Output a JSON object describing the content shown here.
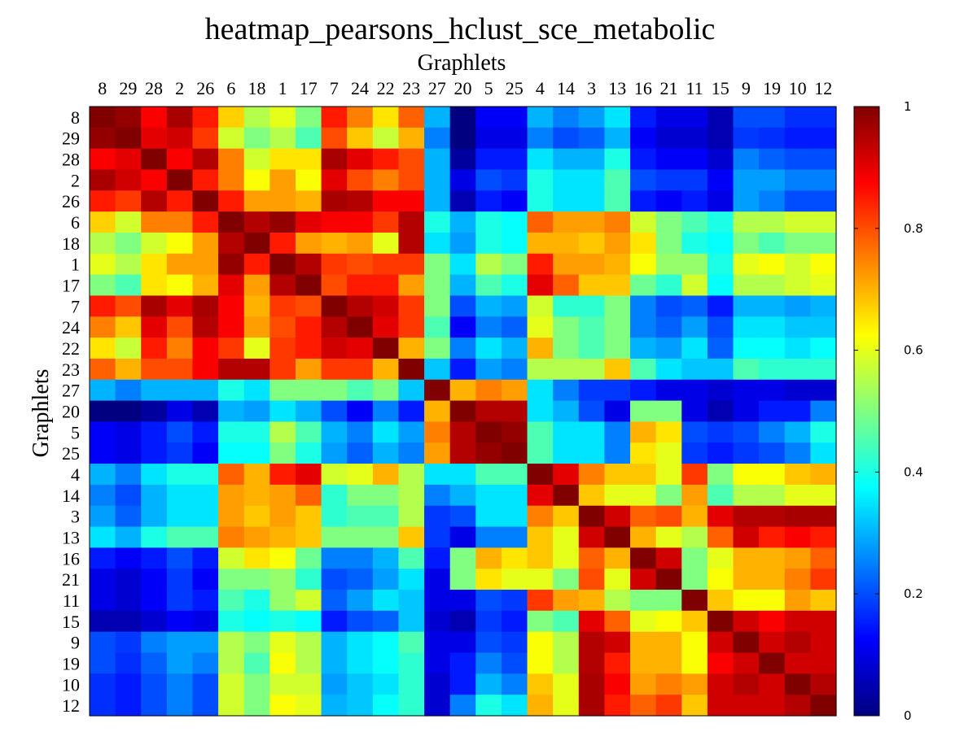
{
  "chart_data": {
    "type": "heatmap",
    "title": "heatmap_pearsons_hclust_sce_metabolic",
    "xlabel": "Graphlets",
    "ylabel": "Graphlets",
    "labels": [
      "8",
      "29",
      "28",
      "2",
      "26",
      "6",
      "18",
      "1",
      "17",
      "7",
      "24",
      "22",
      "23",
      "27",
      "20",
      "5",
      "25",
      "4",
      "14",
      "3",
      "13",
      "16",
      "21",
      "11",
      "15",
      "9",
      "19",
      "10",
      "12"
    ],
    "colorscale": "jet",
    "clim": [
      0,
      1
    ],
    "colorbar_ticks": [
      "0",
      "0.2",
      "0.4",
      "0.6",
      "0.8",
      "1"
    ],
    "values": [
      [
        1.0,
        0.98,
        0.88,
        0.96,
        0.85,
        0.67,
        0.55,
        0.6,
        0.5,
        0.85,
        0.75,
        0.65,
        0.78,
        0.3,
        0.0,
        0.12,
        0.12,
        0.3,
        0.25,
        0.28,
        0.35,
        0.15,
        0.1,
        0.1,
        0.05,
        0.2,
        0.2,
        0.17,
        0.17
      ],
      [
        0.98,
        1.0,
        0.9,
        0.92,
        0.82,
        0.58,
        0.5,
        0.55,
        0.45,
        0.8,
        0.68,
        0.57,
        0.7,
        0.25,
        0.0,
        0.1,
        0.1,
        0.25,
        0.2,
        0.22,
        0.3,
        0.12,
        0.08,
        0.08,
        0.05,
        0.18,
        0.17,
        0.15,
        0.15
      ],
      [
        0.88,
        0.9,
        1.0,
        0.88,
        0.95,
        0.75,
        0.58,
        0.65,
        0.65,
        0.96,
        0.9,
        0.85,
        0.8,
        0.3,
        0.03,
        0.15,
        0.15,
        0.35,
        0.3,
        0.3,
        0.4,
        0.15,
        0.12,
        0.12,
        0.08,
        0.25,
        0.22,
        0.2,
        0.2
      ],
      [
        0.96,
        0.92,
        0.88,
        1.0,
        0.85,
        0.75,
        0.62,
        0.72,
        0.62,
        0.9,
        0.8,
        0.75,
        0.8,
        0.3,
        0.1,
        0.2,
        0.18,
        0.4,
        0.35,
        0.35,
        0.45,
        0.2,
        0.18,
        0.18,
        0.12,
        0.28,
        0.28,
        0.25,
        0.25
      ],
      [
        0.85,
        0.82,
        0.95,
        0.85,
        1.0,
        0.85,
        0.72,
        0.72,
        0.7,
        0.96,
        0.95,
        0.88,
        0.88,
        0.3,
        0.05,
        0.15,
        0.12,
        0.4,
        0.35,
        0.35,
        0.45,
        0.15,
        0.12,
        0.15,
        0.1,
        0.28,
        0.25,
        0.2,
        0.2
      ],
      [
        0.67,
        0.58,
        0.75,
        0.75,
        0.85,
        1.0,
        0.95,
        0.98,
        0.9,
        0.88,
        0.88,
        0.82,
        0.95,
        0.4,
        0.3,
        0.4,
        0.38,
        0.78,
        0.72,
        0.72,
        0.75,
        0.58,
        0.5,
        0.45,
        0.4,
        0.55,
        0.55,
        0.58,
        0.58
      ],
      [
        0.55,
        0.5,
        0.58,
        0.62,
        0.72,
        0.95,
        1.0,
        0.85,
        0.72,
        0.7,
        0.72,
        0.6,
        0.95,
        0.35,
        0.28,
        0.4,
        0.38,
        0.7,
        0.7,
        0.68,
        0.72,
        0.65,
        0.5,
        0.4,
        0.38,
        0.5,
        0.45,
        0.5,
        0.5
      ],
      [
        0.6,
        0.55,
        0.65,
        0.72,
        0.72,
        0.98,
        0.85,
        1.0,
        0.95,
        0.82,
        0.8,
        0.82,
        0.82,
        0.5,
        0.35,
        0.55,
        0.5,
        0.85,
        0.72,
        0.72,
        0.7,
        0.62,
        0.52,
        0.52,
        0.4,
        0.6,
        0.62,
        0.58,
        0.62
      ],
      [
        0.5,
        0.45,
        0.65,
        0.62,
        0.7,
        0.9,
        0.72,
        0.95,
        1.0,
        0.8,
        0.85,
        0.85,
        0.72,
        0.5,
        0.3,
        0.45,
        0.4,
        0.9,
        0.78,
        0.68,
        0.68,
        0.48,
        0.42,
        0.58,
        0.38,
        0.55,
        0.55,
        0.58,
        0.6
      ],
      [
        0.85,
        0.8,
        0.96,
        0.9,
        0.96,
        0.88,
        0.7,
        0.82,
        0.8,
        1.0,
        0.95,
        0.92,
        0.82,
        0.5,
        0.2,
        0.3,
        0.28,
        0.58,
        0.42,
        0.42,
        0.5,
        0.25,
        0.2,
        0.22,
        0.15,
        0.3,
        0.3,
        0.28,
        0.3
      ],
      [
        0.75,
        0.68,
        0.9,
        0.8,
        0.95,
        0.88,
        0.72,
        0.8,
        0.85,
        0.95,
        1.0,
        0.9,
        0.82,
        0.45,
        0.12,
        0.25,
        0.22,
        0.6,
        0.5,
        0.45,
        0.5,
        0.25,
        0.22,
        0.28,
        0.2,
        0.35,
        0.35,
        0.32,
        0.32
      ],
      [
        0.65,
        0.57,
        0.85,
        0.75,
        0.88,
        0.82,
        0.6,
        0.82,
        0.85,
        0.92,
        0.9,
        1.0,
        0.7,
        0.5,
        0.25,
        0.35,
        0.3,
        0.7,
        0.5,
        0.45,
        0.5,
        0.3,
        0.28,
        0.35,
        0.22,
        0.38,
        0.38,
        0.35,
        0.38
      ],
      [
        0.78,
        0.7,
        0.8,
        0.8,
        0.88,
        0.95,
        0.95,
        0.82,
        0.72,
        0.82,
        0.82,
        0.7,
        1.0,
        0.32,
        0.15,
        0.28,
        0.25,
        0.55,
        0.55,
        0.55,
        0.68,
        0.45,
        0.35,
        0.32,
        0.32,
        0.45,
        0.42,
        0.42,
        0.42
      ],
      [
        0.3,
        0.25,
        0.3,
        0.3,
        0.3,
        0.4,
        0.35,
        0.5,
        0.5,
        0.5,
        0.45,
        0.5,
        0.32,
        1.0,
        0.7,
        0.75,
        0.72,
        0.35,
        0.25,
        0.18,
        0.18,
        0.15,
        0.1,
        0.1,
        0.08,
        0.1,
        0.1,
        0.08,
        0.08
      ],
      [
        0.0,
        0.0,
        0.03,
        0.1,
        0.05,
        0.3,
        0.28,
        0.35,
        0.3,
        0.2,
        0.12,
        0.25,
        0.15,
        0.7,
        1.0,
        0.95,
        0.95,
        0.35,
        0.3,
        0.2,
        0.1,
        0.5,
        0.5,
        0.1,
        0.05,
        0.1,
        0.15,
        0.15,
        0.25
      ],
      [
        0.12,
        0.1,
        0.15,
        0.2,
        0.15,
        0.4,
        0.4,
        0.55,
        0.45,
        0.3,
        0.25,
        0.35,
        0.28,
        0.75,
        0.95,
        1.0,
        0.98,
        0.45,
        0.35,
        0.35,
        0.25,
        0.7,
        0.65,
        0.2,
        0.18,
        0.2,
        0.25,
        0.3,
        0.4
      ],
      [
        0.12,
        0.1,
        0.15,
        0.18,
        0.12,
        0.38,
        0.38,
        0.5,
        0.4,
        0.28,
        0.22,
        0.3,
        0.25,
        0.72,
        0.95,
        0.98,
        1.0,
        0.45,
        0.35,
        0.35,
        0.25,
        0.65,
        0.6,
        0.18,
        0.15,
        0.18,
        0.2,
        0.25,
        0.35
      ],
      [
        0.3,
        0.25,
        0.35,
        0.4,
        0.4,
        0.78,
        0.7,
        0.85,
        0.9,
        0.58,
        0.6,
        0.7,
        0.55,
        0.35,
        0.35,
        0.45,
        0.45,
        1.0,
        0.9,
        0.75,
        0.68,
        0.68,
        0.6,
        0.82,
        0.5,
        0.62,
        0.62,
        0.68,
        0.7
      ],
      [
        0.25,
        0.2,
        0.3,
        0.35,
        0.35,
        0.72,
        0.7,
        0.72,
        0.78,
        0.42,
        0.5,
        0.5,
        0.55,
        0.25,
        0.3,
        0.35,
        0.35,
        0.9,
        1.0,
        0.68,
        0.6,
        0.6,
        0.5,
        0.72,
        0.45,
        0.55,
        0.55,
        0.6,
        0.6
      ],
      [
        0.28,
        0.22,
        0.3,
        0.35,
        0.35,
        0.72,
        0.68,
        0.72,
        0.68,
        0.42,
        0.45,
        0.45,
        0.55,
        0.18,
        0.2,
        0.35,
        0.35,
        0.75,
        0.68,
        1.0,
        0.92,
        0.78,
        0.8,
        0.7,
        0.9,
        0.95,
        0.95,
        0.96,
        0.96
      ],
      [
        0.35,
        0.3,
        0.4,
        0.45,
        0.45,
        0.75,
        0.72,
        0.7,
        0.68,
        0.5,
        0.5,
        0.5,
        0.68,
        0.18,
        0.1,
        0.25,
        0.25,
        0.68,
        0.6,
        0.92,
        1.0,
        0.7,
        0.6,
        0.55,
        0.78,
        0.92,
        0.85,
        0.88,
        0.85
      ],
      [
        0.15,
        0.12,
        0.15,
        0.2,
        0.15,
        0.58,
        0.65,
        0.62,
        0.48,
        0.25,
        0.25,
        0.3,
        0.45,
        0.15,
        0.5,
        0.7,
        0.65,
        0.68,
        0.6,
        0.78,
        0.7,
        1.0,
        0.92,
        0.5,
        0.6,
        0.7,
        0.7,
        0.72,
        0.78
      ],
      [
        0.1,
        0.08,
        0.12,
        0.18,
        0.12,
        0.5,
        0.5,
        0.52,
        0.42,
        0.2,
        0.22,
        0.28,
        0.35,
        0.1,
        0.5,
        0.65,
        0.6,
        0.6,
        0.5,
        0.8,
        0.6,
        0.92,
        1.0,
        0.5,
        0.62,
        0.7,
        0.7,
        0.75,
        0.82
      ],
      [
        0.1,
        0.08,
        0.12,
        0.18,
        0.15,
        0.45,
        0.4,
        0.52,
        0.58,
        0.22,
        0.28,
        0.35,
        0.32,
        0.1,
        0.1,
        0.2,
        0.18,
        0.82,
        0.72,
        0.7,
        0.55,
        0.5,
        0.5,
        1.0,
        0.68,
        0.62,
        0.62,
        0.72,
        0.68
      ],
      [
        0.05,
        0.05,
        0.08,
        0.12,
        0.1,
        0.4,
        0.38,
        0.4,
        0.38,
        0.15,
        0.2,
        0.22,
        0.32,
        0.08,
        0.05,
        0.18,
        0.15,
        0.5,
        0.45,
        0.9,
        0.78,
        0.6,
        0.62,
        0.68,
        1.0,
        0.92,
        0.88,
        0.92,
        0.92
      ],
      [
        0.2,
        0.18,
        0.25,
        0.28,
        0.28,
        0.55,
        0.5,
        0.6,
        0.55,
        0.3,
        0.35,
        0.38,
        0.45,
        0.1,
        0.1,
        0.2,
        0.18,
        0.62,
        0.55,
        0.95,
        0.92,
        0.7,
        0.7,
        0.62,
        0.92,
        1.0,
        0.92,
        0.95,
        0.92
      ],
      [
        0.2,
        0.17,
        0.22,
        0.28,
        0.25,
        0.55,
        0.45,
        0.62,
        0.55,
        0.3,
        0.35,
        0.38,
        0.42,
        0.1,
        0.15,
        0.25,
        0.2,
        0.62,
        0.55,
        0.95,
        0.85,
        0.7,
        0.7,
        0.62,
        0.88,
        0.92,
        1.0,
        0.92,
        0.92
      ],
      [
        0.17,
        0.15,
        0.2,
        0.25,
        0.2,
        0.58,
        0.5,
        0.58,
        0.58,
        0.28,
        0.32,
        0.35,
        0.42,
        0.08,
        0.15,
        0.3,
        0.25,
        0.68,
        0.6,
        0.96,
        0.88,
        0.72,
        0.75,
        0.72,
        0.92,
        0.95,
        0.92,
        1.0,
        0.95
      ],
      [
        0.17,
        0.15,
        0.2,
        0.25,
        0.2,
        0.58,
        0.5,
        0.62,
        0.6,
        0.3,
        0.32,
        0.38,
        0.42,
        0.08,
        0.25,
        0.4,
        0.35,
        0.7,
        0.6,
        0.96,
        0.85,
        0.78,
        0.82,
        0.68,
        0.92,
        0.92,
        0.92,
        0.95,
        1.0
      ]
    ]
  }
}
